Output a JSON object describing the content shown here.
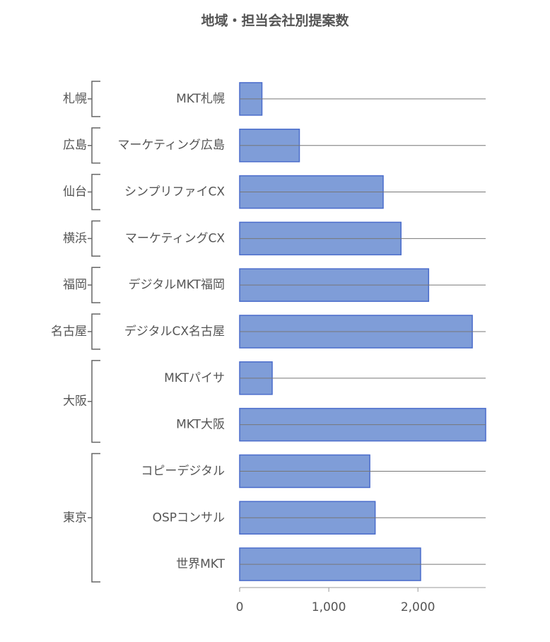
{
  "chart_data": {
    "type": "bar",
    "orientation": "horizontal",
    "title": "地域・担当会社別提案数",
    "groups": [
      "札幌",
      "広島",
      "仙台",
      "横浜",
      "福岡",
      "名古屋",
      "大阪",
      null,
      "東京",
      null,
      null
    ],
    "categories": [
      "MKT札幌",
      "マーケティング広島",
      "シンプリファイCX",
      "マーケティングCX",
      "デジタルMKT福岡",
      "デジタルCX名古屋",
      "MKTパイサ",
      "MKT大阪",
      "コピーデジタル",
      "OSPコンサル",
      "世界MKT"
    ],
    "values": [
      250,
      670,
      1610,
      1810,
      2120,
      2610,
      365,
      2760,
      1460,
      1520,
      2030
    ],
    "color": "#7f9dd8",
    "edge_color": "#4a6ccb",
    "xlim": [
      0,
      2760
    ],
    "xticks": [
      0,
      {
        "value": 1000,
        "label": "1,000"
      },
      {
        "value": 2000,
        "label": "2,000"
      }
    ]
  }
}
